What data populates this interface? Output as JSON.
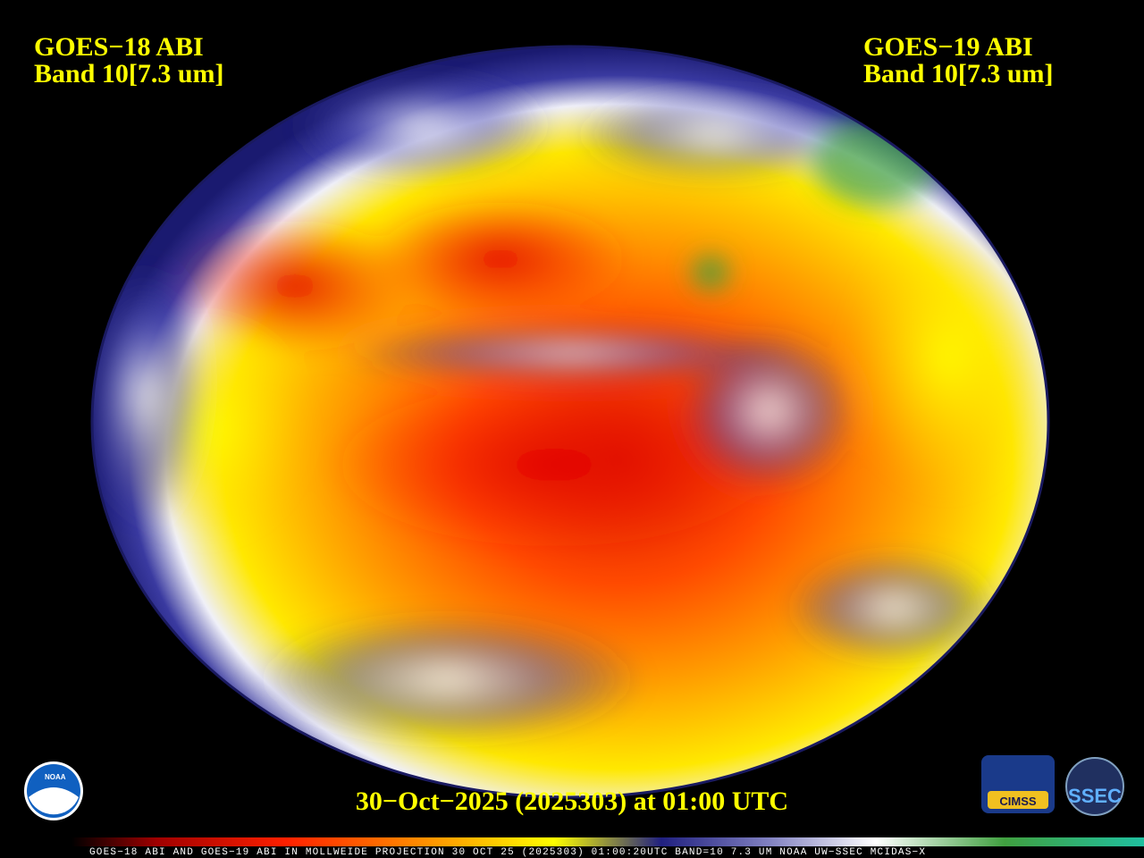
{
  "header": {
    "left": {
      "satellite": "GOES−18 ABI",
      "band": "Band 10[7.3 um]"
    },
    "right": {
      "satellite": "GOES−19 ABI",
      "band": "Band 10[7.3 um]"
    }
  },
  "footer": {
    "timestamp": "30−Oct−2025 (2025303) at 01:00 UTC"
  },
  "colorbar": {
    "caption": "GOES−18 ABI AND GOES−19 ABI IN MOLLWEIDE PROJECTION 30 OCT 25 (2025303) 01:00:20UTC BAND=10 7.3 UM NOAA UW−SSEC MCIDAS−X"
  },
  "logos": {
    "noaa": "NOAA",
    "cimss": "CIMSS",
    "ssec": "SSEC"
  }
}
